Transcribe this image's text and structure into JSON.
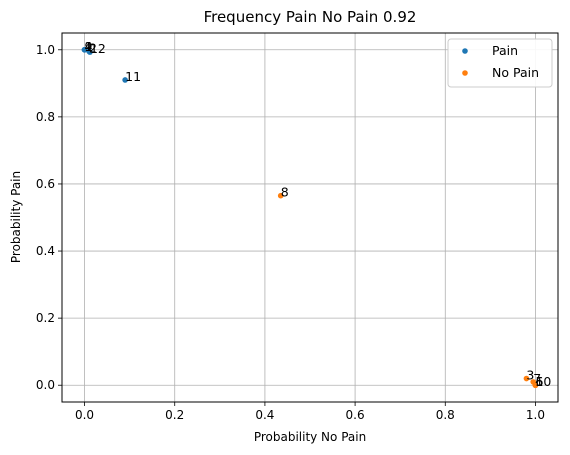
{
  "chart_data": {
    "type": "scatter",
    "title": "Frequency Pain No Pain 0.92",
    "xlabel": "Probability No Pain",
    "ylabel": "Probability Pain",
    "xlim": [
      -0.05,
      1.05
    ],
    "ylim": [
      -0.05,
      1.05
    ],
    "xticks": [
      0.0,
      0.2,
      0.4,
      0.6,
      0.8,
      1.0
    ],
    "yticks": [
      0.0,
      0.2,
      0.4,
      0.6,
      0.8,
      1.0
    ],
    "xtick_labels": [
      "0.0",
      "0.2",
      "0.4",
      "0.6",
      "0.8",
      "1.0"
    ],
    "ytick_labels": [
      "0.0",
      "0.2",
      "0.4",
      "0.6",
      "0.8",
      "1.0"
    ],
    "grid": true,
    "legend_position": "top-right",
    "series": [
      {
        "name": "Pain",
        "color": "#1f77b4",
        "points": [
          {
            "label": "1",
            "x": 0.0,
            "y": 1.0
          },
          {
            "label": "9",
            "x": 0.0,
            "y": 1.0
          },
          {
            "label": "4",
            "x": 0.0,
            "y": 1.0
          },
          {
            "label": "2",
            "x": 0.01,
            "y": 0.995
          },
          {
            "label": "12",
            "x": 0.012,
            "y": 0.993
          },
          {
            "label": "11",
            "x": 0.09,
            "y": 0.91
          }
        ]
      },
      {
        "name": "No Pain",
        "color": "#ff7f0e",
        "points": [
          {
            "label": "8",
            "x": 0.435,
            "y": 0.565
          },
          {
            "label": "3",
            "x": 0.98,
            "y": 0.02
          },
          {
            "label": "7",
            "x": 0.995,
            "y": 0.01
          },
          {
            "label": "5",
            "x": 1.0,
            "y": 0.0
          },
          {
            "label": "6",
            "x": 1.0,
            "y": 0.0
          },
          {
            "label": "10",
            "x": 1.0,
            "y": 0.0
          }
        ]
      }
    ]
  }
}
